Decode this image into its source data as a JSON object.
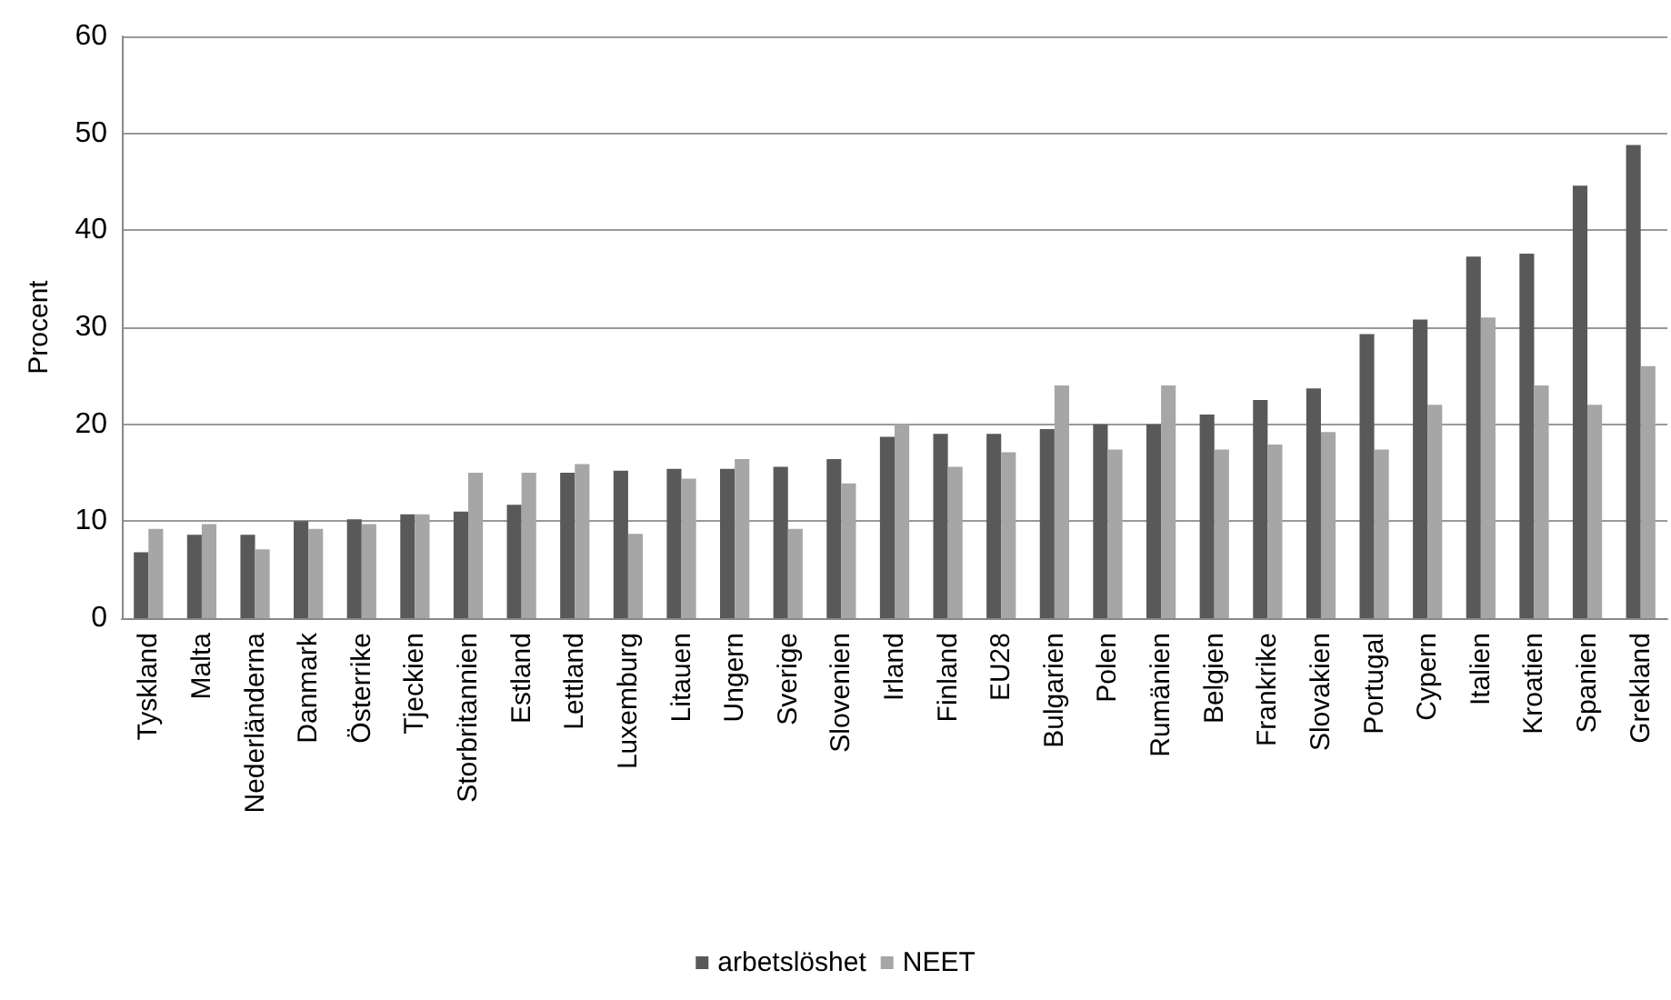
{
  "chart_data": {
    "type": "bar",
    "ylabel": "Procent",
    "categories": [
      "Tyskland",
      "Malta",
      "Nederländerna",
      "Danmark",
      "Österrike",
      "Tjeckien",
      "Storbritannien",
      "Estland",
      "Lettland",
      "Luxemburg",
      "Litauen",
      "Ungern",
      "Sverige",
      "Slovenien",
      "Irland",
      "Finland",
      "EU28",
      "Bulgarien",
      "Polen",
      "Rumänien",
      "Belgien",
      "Frankrike",
      "Slovakien",
      "Portugal",
      "Cypern",
      "Italien",
      "Kroatien",
      "Spanien",
      "Grekland"
    ],
    "series": [
      {
        "name": "arbetslöshet",
        "color": "#595959",
        "values": [
          6.8,
          8.6,
          8.6,
          10.0,
          10.2,
          10.7,
          11.0,
          11.7,
          15.0,
          15.2,
          15.4,
          15.4,
          15.6,
          16.4,
          18.7,
          19.0,
          19.0,
          19.5,
          20.0,
          20.0,
          21.0,
          22.5,
          23.7,
          29.3,
          30.8,
          37.3,
          37.6,
          44.6,
          48.8
        ]
      },
      {
        "name": "NEET",
        "color": "#a6a6a6",
        "values": [
          9.2,
          9.7,
          7.1,
          9.2,
          9.7,
          10.7,
          15.0,
          15.0,
          15.9,
          8.7,
          14.4,
          16.4,
          9.2,
          13.9,
          20.0,
          15.6,
          17.1,
          24.0,
          17.4,
          24.0,
          17.4,
          17.9,
          19.2,
          17.4,
          22.0,
          31.0,
          24.0,
          22.0,
          26.0
        ]
      }
    ],
    "ylim": [
      0,
      60
    ],
    "yticks": [
      0,
      10,
      20,
      30,
      40,
      50,
      60
    ],
    "grid": "y",
    "legend": "bottom"
  }
}
